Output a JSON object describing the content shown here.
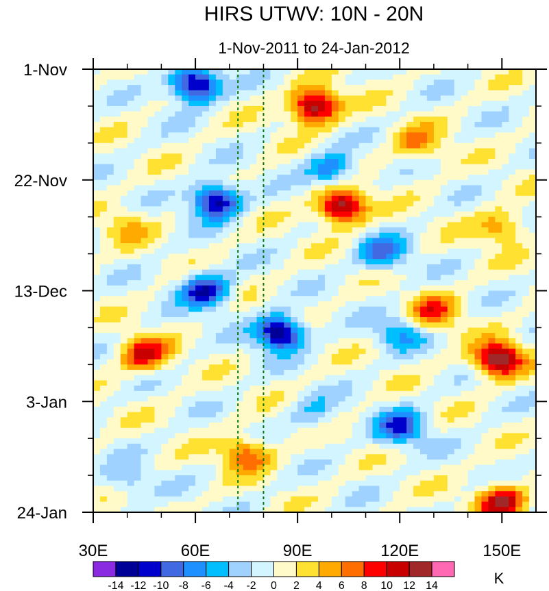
{
  "chart_data": {
    "type": "heatmap",
    "title": "HIRS UTWV: 10N - 20N",
    "subtitle": "1-Nov-2011 to 24-Jan-2012",
    "xlabel": "",
    "ylabel": "",
    "xlim": [
      30,
      160
    ],
    "ylim_days": [
      0,
      84
    ],
    "x_ticks": [
      {
        "value": 30,
        "label": "30E"
      },
      {
        "value": 60,
        "label": "60E"
      },
      {
        "value": 90,
        "label": "90E"
      },
      {
        "value": 120,
        "label": "120E"
      },
      {
        "value": 150,
        "label": "150E"
      }
    ],
    "y_ticks": [
      {
        "value": 0,
        "label": "1-Nov"
      },
      {
        "value": 21,
        "label": "22-Nov"
      },
      {
        "value": 42,
        "label": "13-Dec"
      },
      {
        "value": 63,
        "label": "3-Jan"
      },
      {
        "value": 84,
        "label": "24-Jan"
      }
    ],
    "reference_lines_lon": [
      72.5,
      80
    ],
    "colorbar": {
      "unit": "K",
      "levels": [
        -14,
        -12,
        -10,
        -8,
        -6,
        -4,
        -2,
        0,
        2,
        4,
        6,
        8,
        10,
        12,
        14
      ],
      "labels": [
        "-14",
        "-12",
        "-10",
        "-8",
        "-6",
        "-4",
        "-2",
        "0",
        "2",
        "4",
        "6",
        "8",
        "10",
        "12",
        "14"
      ],
      "colors": [
        "#8a2be2",
        "#000096",
        "#0000cd",
        "#4169e1",
        "#1e90ff",
        "#00bfff",
        "#a0d2ff",
        "#d2f5ff",
        "#fffac8",
        "#ffe132",
        "#ffaa00",
        "#ff6e00",
        "#ff0000",
        "#c80000",
        "#a02828",
        "#ff69b4"
      ]
    },
    "anomalies": [
      {
        "lon": 60,
        "day": 3,
        "value": -15
      },
      {
        "lon": 95,
        "day": 7,
        "value": 15
      },
      {
        "lon": 103,
        "day": 26,
        "value": 15
      },
      {
        "lon": 66,
        "day": 25,
        "value": -14
      },
      {
        "lon": 63,
        "day": 42,
        "value": -12
      },
      {
        "lon": 85,
        "day": 50,
        "value": -15
      },
      {
        "lon": 149,
        "day": 55,
        "value": 15
      },
      {
        "lon": 120,
        "day": 68,
        "value": -10
      },
      {
        "lon": 45,
        "day": 54,
        "value": 10
      },
      {
        "lon": 75,
        "day": 73,
        "value": 8
      },
      {
        "lon": 100,
        "day": 19,
        "value": -8
      },
      {
        "lon": 115,
        "day": 35,
        "value": -8
      },
      {
        "lon": 130,
        "day": 46,
        "value": 8
      },
      {
        "lon": 150,
        "day": 82,
        "value": 12
      },
      {
        "lon": 125,
        "day": 14,
        "value": 6
      },
      {
        "lon": 40,
        "day": 30,
        "value": 4
      },
      {
        "lon": 150,
        "day": 30,
        "value": 6
      },
      {
        "lon": 120,
        "day": 50,
        "value": -6
      },
      {
        "lon": 40,
        "day": 78,
        "value": -4
      },
      {
        "lon": 95,
        "day": 65,
        "value": -4
      }
    ]
  }
}
